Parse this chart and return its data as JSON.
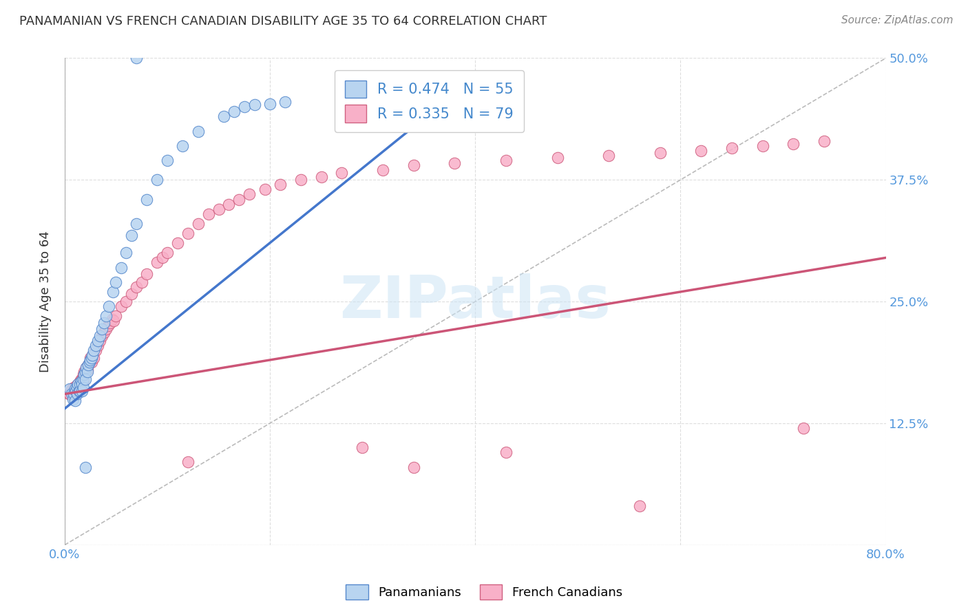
{
  "title": "PANAMANIAN VS FRENCH CANADIAN DISABILITY AGE 35 TO 64 CORRELATION CHART",
  "source": "Source: ZipAtlas.com",
  "ylabel": "Disability Age 35 to 64",
  "xlim": [
    0.0,
    0.8
  ],
  "ylim": [
    0.0,
    0.5
  ],
  "yticks": [
    0.0,
    0.125,
    0.25,
    0.375,
    0.5
  ],
  "yticklabels_right": [
    "",
    "12.5%",
    "25.0%",
    "37.5%",
    "50.0%"
  ],
  "blue_R": 0.474,
  "blue_N": 55,
  "pink_R": 0.335,
  "pink_N": 79,
  "blue_color": "#b8d4f0",
  "blue_edge": "#5588cc",
  "pink_color": "#f8b0c8",
  "pink_edge": "#d06080",
  "blue_line_color": "#4477cc",
  "pink_line_color": "#cc5577",
  "background_color": "#ffffff",
  "grid_color": "#dddddd",
  "blue_line_x0": 0.0,
  "blue_line_y0": 0.14,
  "blue_line_x1": 0.37,
  "blue_line_y1": 0.455,
  "pink_line_x0": 0.0,
  "pink_line_y0": 0.155,
  "pink_line_x1": 0.8,
  "pink_line_y1": 0.295,
  "blue_x": [
    0.005,
    0.007,
    0.008,
    0.009,
    0.01,
    0.01,
    0.011,
    0.012,
    0.012,
    0.013,
    0.014,
    0.015,
    0.015,
    0.016,
    0.017,
    0.017,
    0.018,
    0.018,
    0.019,
    0.02,
    0.02,
    0.021,
    0.022,
    0.023,
    0.024,
    0.025,
    0.026,
    0.027,
    0.028,
    0.03,
    0.032,
    0.034,
    0.036,
    0.038,
    0.04,
    0.043,
    0.047,
    0.05,
    0.055,
    0.06,
    0.065,
    0.07,
    0.08,
    0.09,
    0.1,
    0.115,
    0.13,
    0.155,
    0.165,
    0.175,
    0.185,
    0.2,
    0.215,
    0.07,
    0.02
  ],
  "blue_y": [
    0.16,
    0.155,
    0.15,
    0.155,
    0.16,
    0.148,
    0.158,
    0.162,
    0.155,
    0.165,
    0.158,
    0.165,
    0.158,
    0.168,
    0.165,
    0.158,
    0.17,
    0.162,
    0.175,
    0.178,
    0.17,
    0.182,
    0.178,
    0.185,
    0.188,
    0.19,
    0.192,
    0.195,
    0.2,
    0.205,
    0.21,
    0.215,
    0.222,
    0.228,
    0.235,
    0.245,
    0.26,
    0.27,
    0.285,
    0.3,
    0.318,
    0.33,
    0.355,
    0.375,
    0.395,
    0.41,
    0.425,
    0.44,
    0.445,
    0.45,
    0.452,
    0.453,
    0.455,
    0.5,
    0.08
  ],
  "pink_x": [
    0.004,
    0.005,
    0.006,
    0.007,
    0.008,
    0.009,
    0.01,
    0.01,
    0.011,
    0.012,
    0.012,
    0.013,
    0.014,
    0.015,
    0.015,
    0.016,
    0.017,
    0.018,
    0.018,
    0.019,
    0.02,
    0.021,
    0.022,
    0.023,
    0.025,
    0.026,
    0.027,
    0.028,
    0.03,
    0.032,
    0.034,
    0.036,
    0.038,
    0.04,
    0.042,
    0.044,
    0.046,
    0.048,
    0.05,
    0.055,
    0.06,
    0.065,
    0.07,
    0.075,
    0.08,
    0.09,
    0.095,
    0.1,
    0.11,
    0.12,
    0.13,
    0.14,
    0.15,
    0.16,
    0.17,
    0.18,
    0.195,
    0.21,
    0.23,
    0.25,
    0.27,
    0.31,
    0.34,
    0.38,
    0.43,
    0.48,
    0.53,
    0.58,
    0.62,
    0.65,
    0.68,
    0.71,
    0.74,
    0.12,
    0.29,
    0.34,
    0.43,
    0.56,
    0.72
  ],
  "pink_y": [
    0.155,
    0.155,
    0.158,
    0.16,
    0.158,
    0.162,
    0.16,
    0.155,
    0.163,
    0.162,
    0.16,
    0.165,
    0.165,
    0.168,
    0.162,
    0.17,
    0.17,
    0.175,
    0.168,
    0.178,
    0.178,
    0.182,
    0.18,
    0.185,
    0.192,
    0.188,
    0.195,
    0.192,
    0.2,
    0.205,
    0.21,
    0.215,
    0.218,
    0.222,
    0.225,
    0.228,
    0.232,
    0.23,
    0.235,
    0.245,
    0.25,
    0.258,
    0.265,
    0.27,
    0.278,
    0.29,
    0.295,
    0.3,
    0.31,
    0.32,
    0.33,
    0.34,
    0.345,
    0.35,
    0.355,
    0.36,
    0.365,
    0.37,
    0.375,
    0.378,
    0.382,
    0.385,
    0.39,
    0.392,
    0.395,
    0.398,
    0.4,
    0.403,
    0.405,
    0.408,
    0.41,
    0.412,
    0.415,
    0.085,
    0.1,
    0.08,
    0.095,
    0.04,
    0.12
  ]
}
